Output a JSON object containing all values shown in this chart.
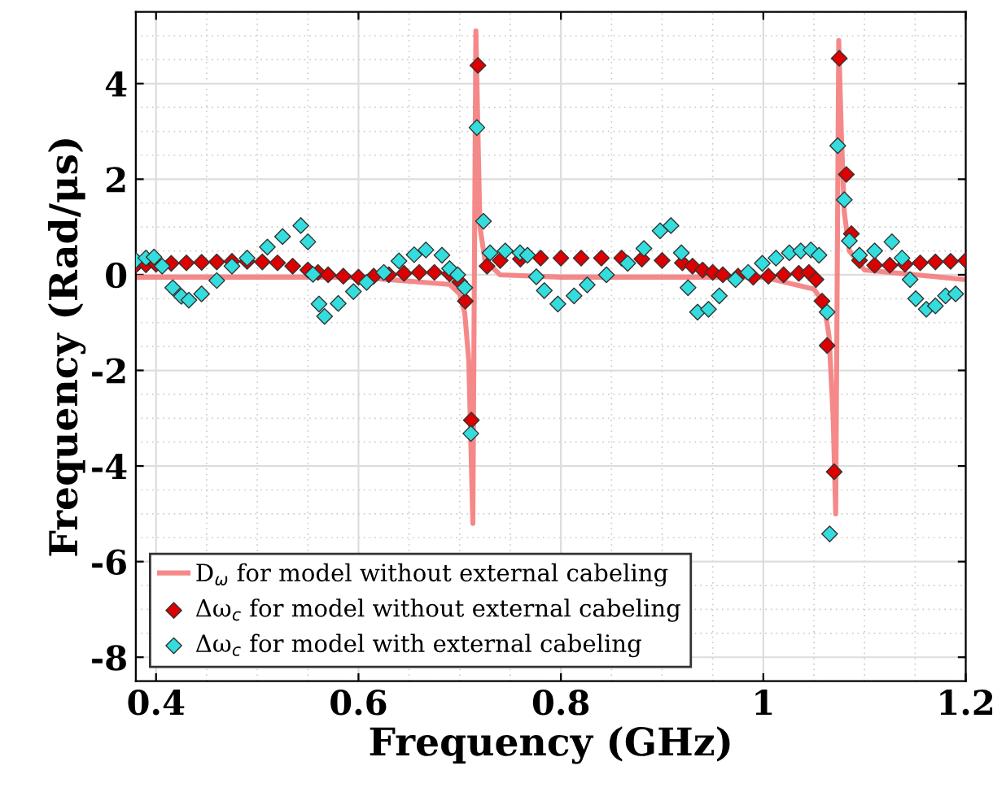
{
  "chart_data": {
    "type": "scatter",
    "xlabel": "Frequency (GHz)",
    "ylabel": "Frequency (Rad/μs)",
    "xlim": [
      0.38,
      1.2
    ],
    "ylim": [
      -8.5,
      5.5
    ],
    "xticks": [
      0.4,
      0.6,
      0.8,
      1,
      1.2
    ],
    "yticks": [
      -8,
      -6,
      -4,
      -2,
      0,
      2,
      4
    ],
    "grid": true,
    "legend": "bottom left",
    "series": [
      {
        "name": "D$_{ω}$ for model without external cabeling",
        "type": "line",
        "color": "#f47c7c",
        "x": [
          0.38,
          0.5,
          0.6,
          0.69,
          0.7,
          0.705,
          0.709,
          0.711,
          0.713,
          0.7145,
          0.716,
          0.718,
          0.72,
          0.725,
          0.74,
          0.8,
          0.9,
          1.0,
          1.05,
          1.06,
          1.065,
          1.069,
          1.0715,
          1.073,
          1.0745,
          1.077,
          1.08,
          1.085,
          1.1,
          1.2
        ],
        "values": [
          -0.05,
          -0.05,
          -0.05,
          -0.2,
          -0.4,
          -0.8,
          -1.8,
          -3.5,
          -5.2,
          0,
          5.1,
          3.0,
          1.0,
          0.3,
          0.0,
          -0.05,
          -0.05,
          -0.05,
          -0.3,
          -0.6,
          -1.3,
          -3.0,
          -5.0,
          0,
          4.9,
          3.0,
          1.3,
          0.5,
          0.1,
          -0.1
        ]
      },
      {
        "name": "Δω$_{c}$ for model without external cabeling",
        "marker": "diamond",
        "color": "#dd0000",
        "x": [
          0.38,
          0.39,
          0.4,
          0.415,
          0.43,
          0.445,
          0.46,
          0.475,
          0.49,
          0.505,
          0.52,
          0.535,
          0.55,
          0.56,
          0.57,
          0.585,
          0.6,
          0.615,
          0.63,
          0.645,
          0.66,
          0.675,
          0.69,
          0.7,
          0.7056,
          0.7115,
          0.718,
          0.727,
          0.74,
          0.76,
          0.78,
          0.8,
          0.82,
          0.84,
          0.86,
          0.88,
          0.9,
          0.92,
          0.93,
          0.94,
          0.95,
          0.96,
          0.975,
          0.99,
          1.005,
          1.02,
          1.035,
          1.045,
          1.052,
          1.058,
          1.063,
          1.07,
          1.075,
          1.082,
          1.087,
          1.095,
          1.11,
          1.125,
          1.14,
          1.155,
          1.17,
          1.185,
          1.2
        ],
        "values": [
          0.2,
          0.21,
          0.22,
          0.24,
          0.25,
          0.26,
          0.27,
          0.28,
          0.28,
          0.27,
          0.25,
          0.18,
          0.1,
          0.05,
          0.0,
          -0.03,
          -0.05,
          -0.03,
          0.0,
          0.03,
          0.05,
          0.05,
          0.02,
          -0.15,
          -0.55,
          -3.04,
          4.38,
          0.18,
          0.3,
          0.33,
          0.35,
          0.35,
          0.35,
          0.35,
          0.35,
          0.33,
          0.3,
          0.25,
          0.18,
          0.1,
          0.05,
          0.0,
          -0.03,
          -0.05,
          -0.03,
          0.0,
          0.03,
          0.05,
          -0.1,
          -0.55,
          -1.48,
          -4.12,
          4.53,
          2.1,
          0.86,
          0.3,
          0.2,
          0.2,
          0.22,
          0.25,
          0.27,
          0.28,
          0.3
        ]
      },
      {
        "name": "Δω$_{c}$ for model with external cabeling",
        "marker": "diamond",
        "color": "#33dddd",
        "x": [
          0.38,
          0.39,
          0.398,
          0.406,
          0.4165,
          0.425,
          0.4324,
          0.445,
          0.46,
          0.475,
          0.49,
          0.51,
          0.525,
          0.543,
          0.55,
          0.555,
          0.561,
          0.5665,
          0.58,
          0.595,
          0.608,
          0.625,
          0.64,
          0.655,
          0.6666,
          0.6825,
          0.69,
          0.698,
          0.705,
          0.711,
          0.717,
          0.7235,
          0.73,
          0.745,
          0.7596,
          0.767,
          0.7757,
          0.7836,
          0.797,
          0.813,
          0.826,
          0.845,
          0.866,
          0.882,
          0.898,
          0.9087,
          0.919,
          0.9256,
          0.935,
          0.9458,
          0.9565,
          0.9725,
          0.985,
          0.999,
          1.0125,
          1.0257,
          1.037,
          1.047,
          1.055,
          1.063,
          1.0655,
          1.0735,
          1.08,
          1.085,
          1.095,
          1.11,
          1.127,
          1.137,
          1.145,
          1.1506,
          1.161,
          1.17,
          1.18,
          1.19
        ],
        "values": [
          0.3,
          0.35,
          0.37,
          0.18,
          -0.27,
          -0.45,
          -0.53,
          -0.4,
          -0.12,
          0.18,
          0.35,
          0.58,
          0.8,
          1.03,
          0.69,
          0.01,
          -0.61,
          -0.87,
          -0.6,
          -0.35,
          -0.16,
          0.05,
          0.29,
          0.42,
          0.52,
          0.41,
          0.13,
          0.0,
          -0.27,
          -3.32,
          3.08,
          1.12,
          0.46,
          0.5,
          0.46,
          0.41,
          -0.04,
          -0.33,
          -0.61,
          -0.44,
          -0.21,
          0.0,
          0.24,
          0.55,
          0.92,
          1.03,
          0.46,
          -0.27,
          -0.78,
          -0.72,
          -0.44,
          -0.1,
          0.05,
          0.24,
          0.35,
          0.46,
          0.5,
          0.52,
          0.41,
          -0.78,
          -5.42,
          2.7,
          1.57,
          0.71,
          0.41,
          0.5,
          0.69,
          0.35,
          -0.1,
          -0.5,
          -0.72,
          -0.65,
          -0.44,
          -0.4
        ]
      }
    ]
  }
}
